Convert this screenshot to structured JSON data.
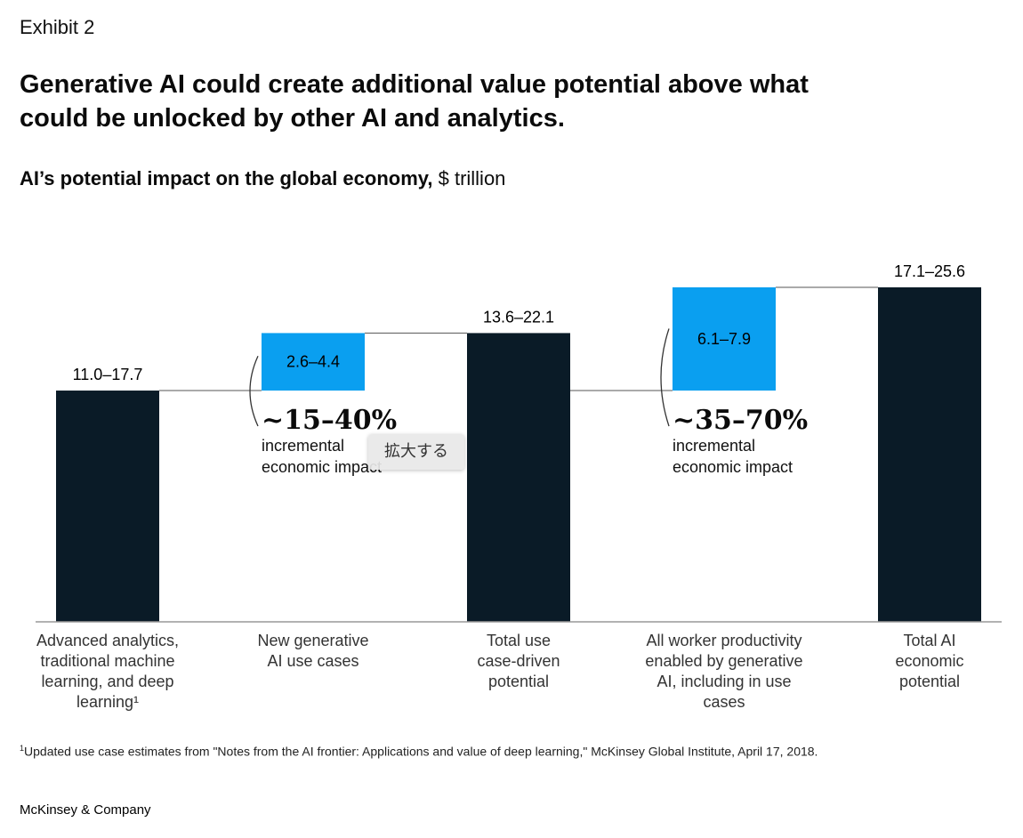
{
  "header": {
    "exhibit": "Exhibit 2",
    "title": "Generative AI could create additional value potential above what could be unlocked by other AI and analytics.",
    "subtitle_bold": "AI’s potential impact on the global economy,",
    "subtitle_unit": " $ trillion"
  },
  "chart_data": {
    "type": "bar",
    "subtype": "waterfall",
    "title": "AI’s potential impact on the global economy, $ trillion",
    "categories": [
      [
        "Advanced analytics,",
        "traditional machine",
        "learning, and deep",
        "learning¹"
      ],
      [
        "New generative",
        "AI use cases"
      ],
      [
        "Total use",
        "case-driven",
        "potential"
      ],
      [
        "All worker productivity",
        "enabled by generative",
        "AI, including in use",
        "cases"
      ],
      [
        "Total AI",
        "economic",
        "potential"
      ]
    ],
    "bars": [
      {
        "kind": "total",
        "label": "11.0–17.7",
        "base": 0,
        "value": 17.7,
        "color": "#0a1b27"
      },
      {
        "kind": "increment",
        "label": "2.6–4.4",
        "base": 17.7,
        "value": 4.4,
        "color": "#0a9ff0"
      },
      {
        "kind": "total",
        "label": "13.6–22.1",
        "base": 0,
        "value": 22.1,
        "color": "#0a1b27"
      },
      {
        "kind": "increment",
        "label": "6.1–7.9",
        "base": 17.7,
        "value": 7.9,
        "color": "#0a9ff0"
      },
      {
        "kind": "total",
        "label": "17.1–25.6",
        "base": 0,
        "value": 25.6,
        "color": "#0a1b27"
      }
    ],
    "annotations": [
      {
        "bar": 1,
        "big": "~15–40%",
        "small": [
          "incremental",
          "economic impact"
        ]
      },
      {
        "bar": 3,
        "big": "~35–70%",
        "small": [
          "incremental",
          "economic impact"
        ]
      }
    ],
    "ylim": [
      0,
      25.6
    ]
  },
  "footnote": {
    "marker": "1",
    "text": "Updated use case estimates from \"Notes from the AI frontier: Applications and value of deep learning,\" McKinsey Global Institute, April 17, 2018."
  },
  "brand": "McKinsey & Company",
  "tooltip": "拡大する"
}
